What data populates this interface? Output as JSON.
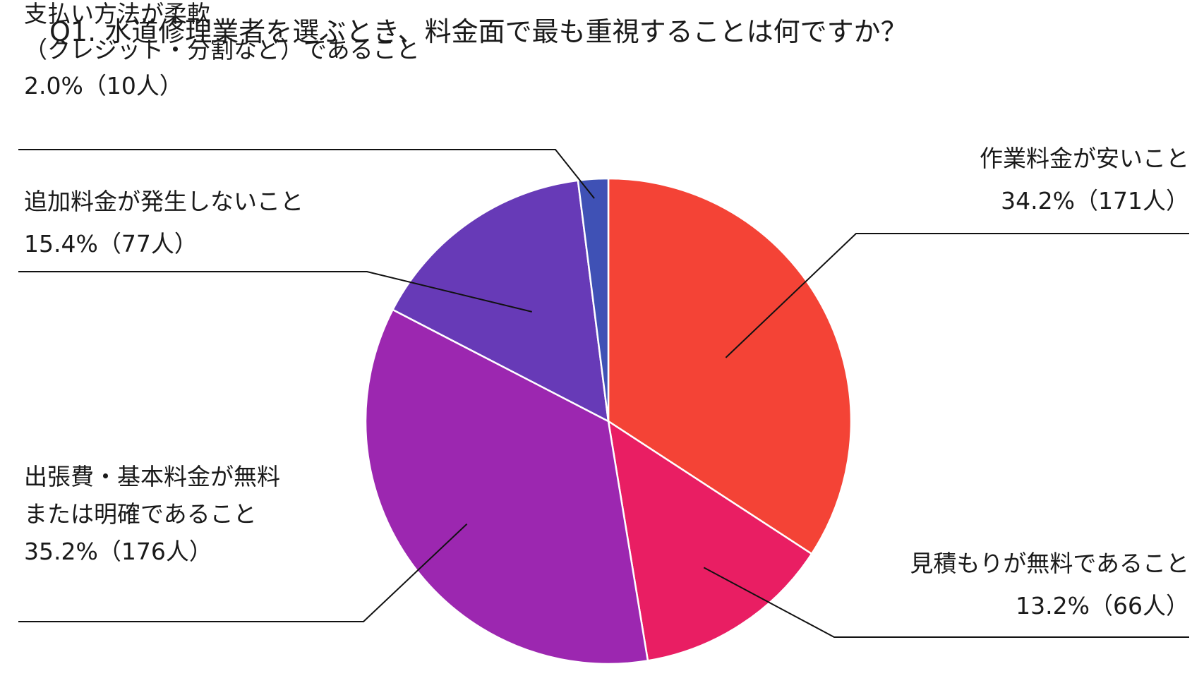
{
  "chart_data": {
    "type": "pie",
    "title": "Q1. 水道修理業者を選ぶとき、料金面で最も重視することは何ですか？",
    "start_angle_deg": 0,
    "direction": "clockwise",
    "slices": [
      {
        "label_lines": [
          "作業料金が安いこと"
        ],
        "value_text": "34.2%（171人）",
        "percent": 34.2,
        "count": 171,
        "color": "#f44336"
      },
      {
        "label_lines": [
          "見積もりが無料であること"
        ],
        "value_text": "13.2%（66人）",
        "percent": 13.2,
        "count": 66,
        "color": "#e91e63"
      },
      {
        "label_lines": [
          "出張費・基本料金が無料",
          "または明確であること"
        ],
        "value_text": "35.2%（176人）",
        "percent": 35.2,
        "count": 176,
        "color": "#9c27b0"
      },
      {
        "label_lines": [
          "追加料金が発生しないこと"
        ],
        "value_text": "15.4%（77人）",
        "percent": 15.4,
        "count": 77,
        "color": "#673ab7"
      },
      {
        "label_lines": [
          "支払い方法が柔軟",
          "（クレジット・分割など）であること"
        ],
        "value_text": "2.0%（10人）",
        "percent": 2.0,
        "count": 10,
        "color": "#3f51b5"
      }
    ]
  }
}
